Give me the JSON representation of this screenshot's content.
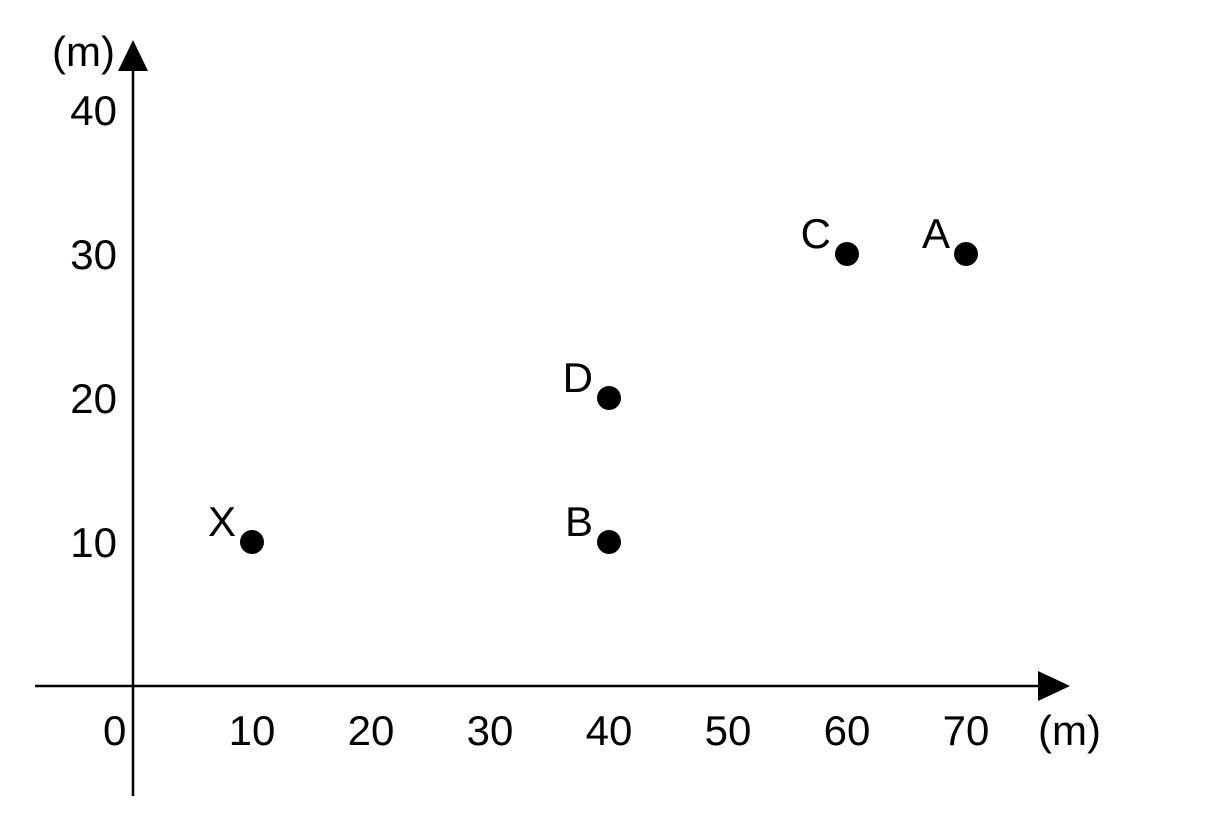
{
  "chart_data": {
    "type": "scatter",
    "x_unit": "(m)",
    "y_unit": "(m)",
    "origin_label": "0",
    "x_ticks": [
      "10",
      "20",
      "30",
      "40",
      "50",
      "60",
      "70"
    ],
    "y_ticks": [
      "10",
      "20",
      "30",
      "40"
    ],
    "xlim": [
      0,
      70
    ],
    "ylim": [
      0,
      40
    ],
    "grid": false,
    "points": [
      {
        "label": "X",
        "x": 10,
        "y": 10
      },
      {
        "label": "B",
        "x": 40,
        "y": 10
      },
      {
        "label": "D",
        "x": 40,
        "y": 20
      },
      {
        "label": "C",
        "x": 60,
        "y": 30
      },
      {
        "label": "A",
        "x": 70,
        "y": 30
      }
    ]
  }
}
